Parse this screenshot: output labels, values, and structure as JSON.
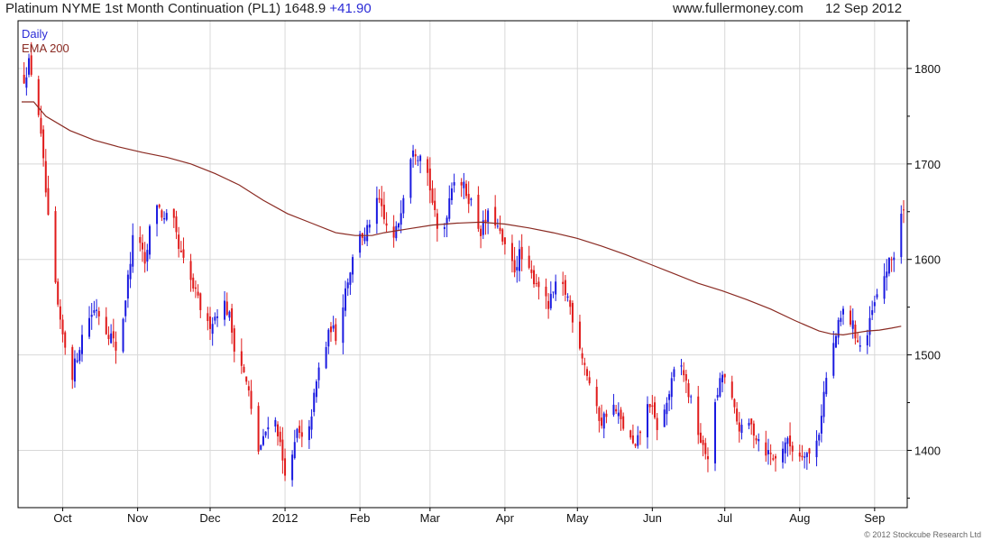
{
  "header": {
    "title": "Platinum NYME 1st Month Continuation (PL1) 1648.9",
    "change": "+41.90",
    "website": "www.fullermoney.com",
    "date": "12 Sep 2012"
  },
  "footer": {
    "copyright": "© 2012 Stockcube Research Ltd"
  },
  "colors": {
    "up": "#1a1ae0",
    "down": "#e01a1a",
    "ema": "#8a2a22",
    "grid": "#d8d8d8",
    "axis": "#000000"
  },
  "chart_data": {
    "type": "candlestick",
    "title": "Platinum NYME 1st Month Continuation (PL1) 1648.9 +41.90",
    "legend": [
      "Daily",
      "EMA 200"
    ],
    "legend_position": "top-left",
    "grid": true,
    "y_axis_side": "right",
    "ylim": [
      1340,
      1850
    ],
    "y_ticks": [
      1400,
      1500,
      1600,
      1700,
      1800
    ],
    "x_ticks": [
      {
        "label": "Oct",
        "day": 17
      },
      {
        "label": "Nov",
        "day": 48
      },
      {
        "label": "Dec",
        "day": 78
      },
      {
        "label": "2012",
        "day": 109
      },
      {
        "label": "Feb",
        "day": 140
      },
      {
        "label": "Mar",
        "day": 169
      },
      {
        "label": "Apr",
        "day": 200
      },
      {
        "label": "May",
        "day": 230
      },
      {
        "label": "Jun",
        "day": 261
      },
      {
        "label": "Jul",
        "day": 291
      },
      {
        "label": "Aug",
        "day": 322
      },
      {
        "label": "Sep",
        "day": 353
      }
    ],
    "x_range": [
      0,
      365
    ],
    "close_path": [
      [
        1,
        1790
      ],
      [
        3,
        1805
      ],
      [
        6,
        1780
      ],
      [
        9,
        1700
      ],
      [
        11,
        1640
      ],
      [
        13,
        1590
      ],
      [
        16,
        1530
      ],
      [
        18,
        1510
      ],
      [
        20,
        1470
      ],
      [
        22,
        1490
      ],
      [
        25,
        1520
      ],
      [
        28,
        1540
      ],
      [
        31,
        1550
      ],
      [
        34,
        1530
      ],
      [
        37,
        1520
      ],
      [
        40,
        1500
      ],
      [
        43,
        1560
      ],
      [
        45,
        1600
      ],
      [
        47,
        1640
      ],
      [
        49,
        1620
      ],
      [
        51,
        1590
      ],
      [
        53,
        1630
      ],
      [
        56,
        1660
      ],
      [
        59,
        1640
      ],
      [
        62,
        1650
      ],
      [
        65,
        1610
      ],
      [
        68,
        1590
      ],
      [
        71,
        1570
      ],
      [
        74,
        1550
      ],
      [
        77,
        1530
      ],
      [
        80,
        1540
      ],
      [
        83,
        1560
      ],
      [
        86,
        1540
      ],
      [
        88,
        1510
      ],
      [
        91,
        1490
      ],
      [
        94,
        1460
      ],
      [
        96,
        1420
      ],
      [
        98,
        1400
      ],
      [
        100,
        1410
      ],
      [
        102,
        1430
      ],
      [
        104,
        1440
      ],
      [
        106,
        1420
      ],
      [
        108,
        1390
      ],
      [
        110,
        1370
      ],
      [
        112,
        1390
      ],
      [
        114,
        1420
      ],
      [
        116,
        1410
      ],
      [
        118,
        1400
      ],
      [
        120,
        1440
      ],
      [
        122,
        1470
      ],
      [
        124,
        1500
      ],
      [
        126,
        1510
      ],
      [
        128,
        1530
      ],
      [
        130,
        1520
      ],
      [
        132,
        1540
      ],
      [
        134,
        1570
      ],
      [
        136,
        1590
      ],
      [
        138,
        1610
      ],
      [
        140,
        1630
      ],
      [
        142,
        1620
      ],
      [
        144,
        1640
      ],
      [
        146,
        1655
      ],
      [
        148,
        1660
      ],
      [
        150,
        1640
      ],
      [
        152,
        1630
      ],
      [
        154,
        1620
      ],
      [
        156,
        1640
      ],
      [
        158,
        1670
      ],
      [
        160,
        1700
      ],
      [
        162,
        1720
      ],
      [
        164,
        1710
      ],
      [
        166,
        1720
      ],
      [
        168,
        1690
      ],
      [
        170,
        1660
      ],
      [
        172,
        1630
      ],
      [
        174,
        1620
      ],
      [
        176,
        1650
      ],
      [
        178,
        1680
      ],
      [
        180,
        1690
      ],
      [
        182,
        1680
      ],
      [
        184,
        1670
      ],
      [
        186,
        1660
      ],
      [
        188,
        1640
      ],
      [
        190,
        1630
      ],
      [
        192,
        1640
      ],
      [
        194,
        1650
      ],
      [
        196,
        1640
      ],
      [
        198,
        1625
      ],
      [
        200,
        1610
      ],
      [
        202,
        1600
      ],
      [
        204,
        1590
      ],
      [
        206,
        1605
      ],
      [
        208,
        1595
      ],
      [
        210,
        1585
      ],
      [
        212,
        1580
      ],
      [
        214,
        1575
      ],
      [
        216,
        1560
      ],
      [
        218,
        1550
      ],
      [
        220,
        1565
      ],
      [
        222,
        1575
      ],
      [
        224,
        1570
      ],
      [
        226,
        1560
      ],
      [
        228,
        1540
      ],
      [
        230,
        1520
      ],
      [
        232,
        1500
      ],
      [
        234,
        1480
      ],
      [
        236,
        1460
      ],
      [
        238,
        1440
      ],
      [
        240,
        1430
      ],
      [
        242,
        1440
      ],
      [
        244,
        1450
      ],
      [
        246,
        1440
      ],
      [
        248,
        1430
      ],
      [
        250,
        1420
      ],
      [
        252,
        1410
      ],
      [
        254,
        1400
      ],
      [
        256,
        1420
      ],
      [
        258,
        1440
      ],
      [
        260,
        1450
      ],
      [
        262,
        1430
      ],
      [
        264,
        1420
      ],
      [
        266,
        1440
      ],
      [
        268,
        1460
      ],
      [
        270,
        1480
      ],
      [
        272,
        1495
      ],
      [
        274,
        1480
      ],
      [
        276,
        1460
      ],
      [
        278,
        1440
      ],
      [
        280,
        1420
      ],
      [
        282,
        1400
      ],
      [
        284,
        1395
      ],
      [
        286,
        1430
      ],
      [
        288,
        1460
      ],
      [
        290,
        1480
      ],
      [
        292,
        1470
      ],
      [
        294,
        1450
      ],
      [
        296,
        1430
      ],
      [
        298,
        1420
      ],
      [
        300,
        1430
      ],
      [
        302,
        1425
      ],
      [
        304,
        1415
      ],
      [
        306,
        1410
      ],
      [
        308,
        1400
      ],
      [
        310,
        1395
      ],
      [
        312,
        1390
      ],
      [
        314,
        1400
      ],
      [
        316,
        1410
      ],
      [
        318,
        1405
      ],
      [
        320,
        1400
      ],
      [
        322,
        1395
      ],
      [
        324,
        1400
      ],
      [
        326,
        1395
      ],
      [
        328,
        1400
      ],
      [
        330,
        1420
      ],
      [
        332,
        1460
      ],
      [
        334,
        1490
      ],
      [
        336,
        1510
      ],
      [
        338,
        1530
      ],
      [
        340,
        1545
      ],
      [
        342,
        1540
      ],
      [
        344,
        1530
      ],
      [
        346,
        1515
      ],
      [
        348,
        1505
      ],
      [
        350,
        1520
      ],
      [
        352,
        1545
      ],
      [
        354,
        1560
      ],
      [
        356,
        1575
      ],
      [
        358,
        1590
      ],
      [
        360,
        1600
      ],
      [
        362,
        1610
      ],
      [
        364,
        1648.9
      ]
    ],
    "ema_200": [
      [
        0,
        1765
      ],
      [
        5,
        1765
      ],
      [
        10,
        1750
      ],
      [
        20,
        1735
      ],
      [
        30,
        1725
      ],
      [
        40,
        1718
      ],
      [
        50,
        1712
      ],
      [
        60,
        1707
      ],
      [
        70,
        1700
      ],
      [
        80,
        1690
      ],
      [
        90,
        1678
      ],
      [
        100,
        1662
      ],
      [
        110,
        1648
      ],
      [
        120,
        1638
      ],
      [
        130,
        1628
      ],
      [
        138,
        1625
      ],
      [
        145,
        1625
      ],
      [
        150,
        1628
      ],
      [
        160,
        1632
      ],
      [
        170,
        1636
      ],
      [
        180,
        1638
      ],
      [
        190,
        1639
      ],
      [
        200,
        1637
      ],
      [
        210,
        1633
      ],
      [
        220,
        1628
      ],
      [
        230,
        1622
      ],
      [
        240,
        1614
      ],
      [
        250,
        1605
      ],
      [
        260,
        1595
      ],
      [
        270,
        1585
      ],
      [
        280,
        1575
      ],
      [
        290,
        1567
      ],
      [
        300,
        1558
      ],
      [
        310,
        1548
      ],
      [
        320,
        1536
      ],
      [
        330,
        1525
      ],
      [
        335,
        1522
      ],
      [
        340,
        1521
      ],
      [
        345,
        1523
      ],
      [
        350,
        1525
      ],
      [
        355,
        1526
      ],
      [
        360,
        1528
      ],
      [
        364,
        1530
      ]
    ]
  }
}
